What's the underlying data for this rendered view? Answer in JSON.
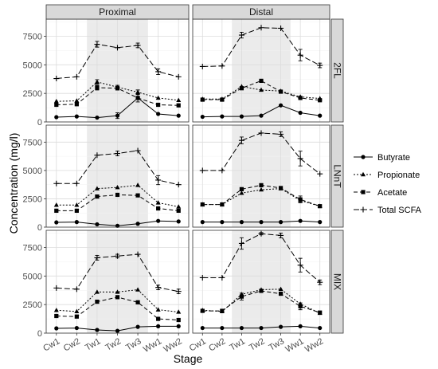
{
  "chart_data": {
    "type": "line",
    "xlabel": "Stage",
    "ylabel": "Concentration (mg/l)",
    "categories": [
      "Cw1",
      "Cw2",
      "Tw1",
      "Tw2",
      "Tw3",
      "Ww1",
      "Ww2"
    ],
    "ylim": [
      0,
      9000
    ],
    "yticks": [
      0,
      2500,
      5000,
      7500
    ],
    "grid": true,
    "shaded_categories": [
      "Tw1",
      "Tw3"
    ],
    "columns": [
      "Proximal",
      "Distal"
    ],
    "rows": [
      "2FL",
      "LNnT",
      "MIX"
    ],
    "legend": {
      "position": "right",
      "entries": [
        {
          "name": "Butyrate",
          "line": "solid",
          "marker": "circle"
        },
        {
          "name": "Propionate",
          "line": "dotted",
          "marker": "triangle"
        },
        {
          "name": "Acetate",
          "line": "dashed",
          "marker": "square"
        },
        {
          "name": "Total SCFA",
          "line": "longdash",
          "marker": "plus"
        }
      ]
    },
    "panels": [
      {
        "row": "2FL",
        "column": "Proximal",
        "series": [
          {
            "name": "Butyrate",
            "values": [
              420,
              480,
              380,
              550,
              2100,
              700,
              550
            ],
            "errors": [
              0,
              0,
              0,
              250,
              350,
              0,
              0
            ]
          },
          {
            "name": "Propionate",
            "values": [
              1800,
              1850,
              3500,
              3050,
              2600,
              2100,
              1900
            ],
            "errors": [
              0,
              0,
              200,
              150,
              200,
              0,
              0
            ]
          },
          {
            "name": "Acetate",
            "values": [
              1500,
              1550,
              3000,
              2950,
              2100,
              1500,
              1450
            ],
            "errors": [
              0,
              0,
              200,
              150,
              0,
              0,
              0
            ]
          },
          {
            "name": "Total SCFA",
            "values": [
              3800,
              3950,
              6800,
              6500,
              6700,
              4400,
              3950
            ],
            "errors": [
              0,
              0,
              250,
              0,
              200,
              250,
              0
            ]
          }
        ]
      },
      {
        "row": "2FL",
        "column": "Distal",
        "series": [
          {
            "name": "Butyrate",
            "values": [
              450,
              480,
              480,
              550,
              1450,
              800,
              550
            ],
            "errors": [
              0,
              0,
              0,
              0,
              0,
              0,
              0
            ]
          },
          {
            "name": "Propionate",
            "values": [
              2000,
              2000,
              3100,
              2800,
              2700,
              2200,
              2050
            ],
            "errors": [
              0,
              0,
              0,
              0,
              0,
              0,
              0
            ]
          },
          {
            "name": "Acetate",
            "values": [
              1950,
              1950,
              2950,
              3600,
              2650,
              2100,
              1900
            ],
            "errors": [
              0,
              0,
              0,
              0,
              0,
              0,
              0
            ]
          },
          {
            "name": "Total SCFA",
            "values": [
              4850,
              4900,
              7600,
              8250,
              8200,
              5850,
              4950
            ],
            "errors": [
              0,
              0,
              250,
              0,
              0,
              500,
              200
            ]
          }
        ]
      },
      {
        "row": "LNnT",
        "column": "Proximal",
        "series": [
          {
            "name": "Butyrate",
            "values": [
              420,
              450,
              250,
              120,
              300,
              550,
              500
            ],
            "errors": [
              0,
              0,
              0,
              0,
              0,
              0,
              0
            ]
          },
          {
            "name": "Propionate",
            "values": [
              1950,
              1950,
              3400,
              3500,
              3700,
              2150,
              1800
            ],
            "errors": [
              0,
              0,
              0,
              0,
              0,
              0,
              0
            ]
          },
          {
            "name": "Acetate",
            "values": [
              1450,
              1450,
              2700,
              2850,
              2800,
              1650,
              1450
            ],
            "errors": [
              0,
              0,
              0,
              0,
              0,
              0,
              0
            ]
          },
          {
            "name": "Total SCFA",
            "values": [
              3850,
              3850,
              6350,
              6500,
              6750,
              4150,
              3750
            ],
            "errors": [
              0,
              0,
              0,
              200,
              0,
              400,
              0
            ]
          }
        ]
      },
      {
        "row": "LNnT",
        "column": "Distal",
        "series": [
          {
            "name": "Butyrate",
            "values": [
              450,
              450,
              450,
              450,
              450,
              550,
              450
            ],
            "errors": [
              0,
              0,
              0,
              0,
              0,
              0,
              0
            ]
          },
          {
            "name": "Propionate",
            "values": [
              2000,
              2000,
              3000,
              3300,
              3400,
              2350,
              1850
            ],
            "errors": [
              0,
              0,
              0,
              0,
              0,
              0,
              0
            ]
          },
          {
            "name": "Acetate",
            "values": [
              2000,
              2000,
              3350,
              3700,
              3450,
              2450,
              1850
            ],
            "errors": [
              0,
              0,
              0,
              0,
              0,
              300,
              0
            ]
          },
          {
            "name": "Total SCFA",
            "values": [
              5000,
              5000,
              7650,
              8300,
              8200,
              6050,
              4700
            ],
            "errors": [
              0,
              0,
              300,
              0,
              200,
              650,
              0
            ]
          }
        ]
      },
      {
        "row": "MIX",
        "column": "Proximal",
        "series": [
          {
            "name": "Butyrate",
            "values": [
              420,
              450,
              280,
              200,
              550,
              600,
              600
            ],
            "errors": [
              0,
              0,
              0,
              0,
              0,
              0,
              0
            ]
          },
          {
            "name": "Propionate",
            "values": [
              2000,
              1900,
              3600,
              3600,
              3800,
              2050,
              1850
            ],
            "errors": [
              0,
              0,
              0,
              0,
              0,
              0,
              0
            ]
          },
          {
            "name": "Acetate",
            "values": [
              1500,
              1450,
              2750,
              3150,
              2700,
              1250,
              1150
            ],
            "errors": [
              0,
              0,
              0,
              0,
              0,
              0,
              0
            ]
          },
          {
            "name": "Total SCFA",
            "values": [
              3950,
              3850,
              6600,
              6750,
              6900,
              4000,
              3650
            ],
            "errors": [
              0,
              0,
              200,
              150,
              0,
              200,
              200
            ]
          }
        ]
      },
      {
        "row": "MIX",
        "column": "Distal",
        "series": [
          {
            "name": "Butyrate",
            "values": [
              450,
              450,
              450,
              450,
              550,
              600,
              450
            ],
            "errors": [
              0,
              0,
              0,
              0,
              0,
              0,
              0
            ]
          },
          {
            "name": "Propionate",
            "values": [
              2000,
              1900,
              3400,
              3800,
              3850,
              2550,
              1750
            ],
            "errors": [
              0,
              0,
              0,
              0,
              0,
              0,
              0
            ]
          },
          {
            "name": "Acetate",
            "values": [
              1950,
              1950,
              3200,
              3700,
              3450,
              2350,
              1800
            ],
            "errors": [
              0,
              0,
              300,
              0,
              0,
              300,
              0
            ]
          },
          {
            "name": "Total SCFA",
            "values": [
              4850,
              4850,
              7850,
              8700,
              8550,
              5950,
              4450
            ],
            "errors": [
              0,
              0,
              500,
              100,
              200,
              600,
              200
            ]
          }
        ]
      }
    ]
  }
}
